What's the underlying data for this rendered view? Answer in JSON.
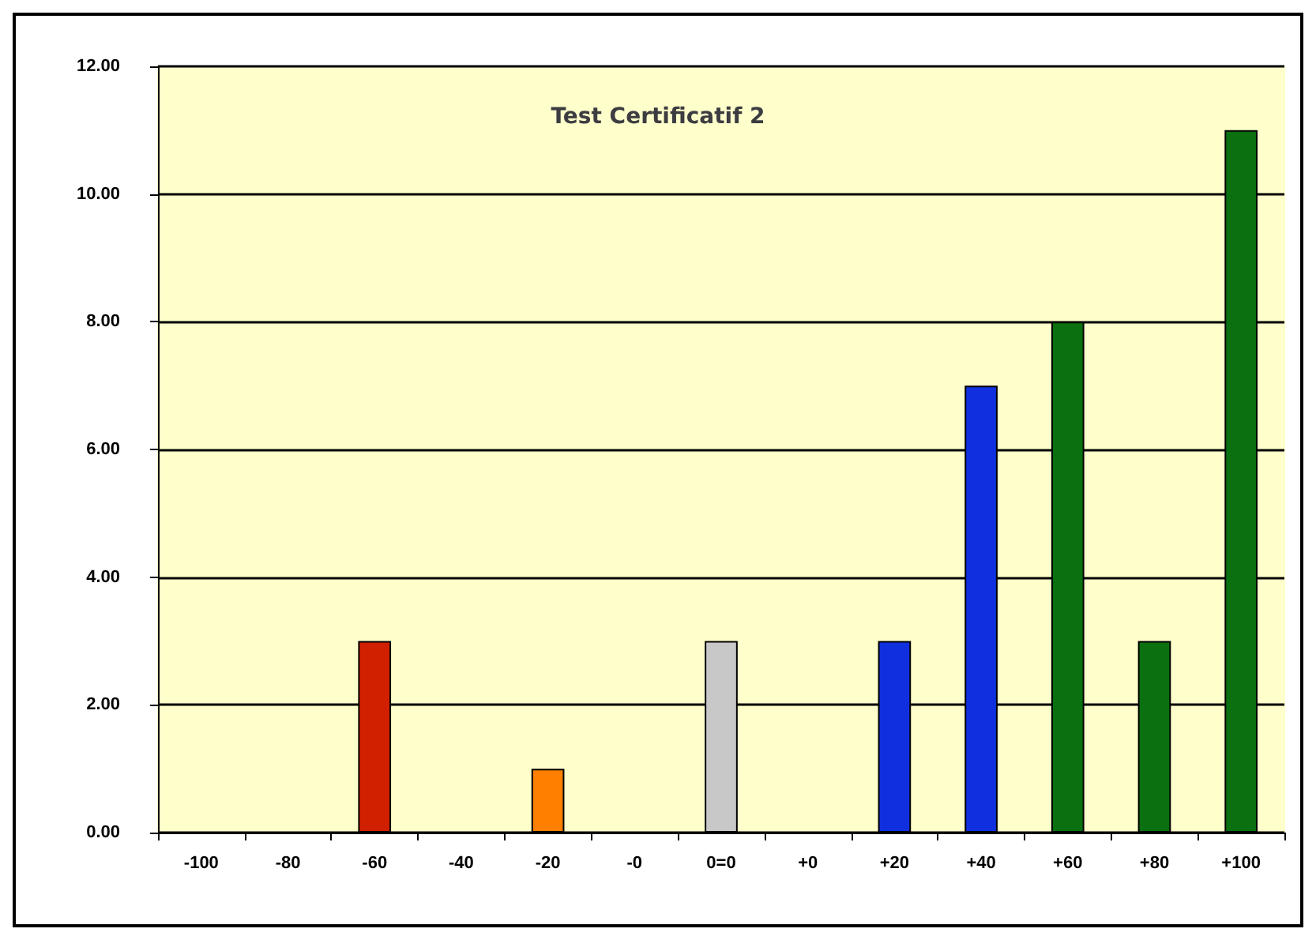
{
  "chart_data": {
    "type": "bar",
    "title": "Test Certificatif 2",
    "categories": [
      "-100",
      "-80",
      "-60",
      "-40",
      "-20",
      "-0",
      "0=0",
      "+0",
      "+20",
      "+40",
      "+60",
      "+80",
      "+100"
    ],
    "values": [
      null,
      null,
      3,
      null,
      1,
      null,
      3,
      null,
      3,
      7,
      8,
      3,
      11
    ],
    "colors": [
      "#d02000",
      "#d02000",
      "#d02000",
      "#ff8000",
      "#ff8000",
      "#c8c8c8",
      "#c8c8c8",
      "#1030e0",
      "#1030e0",
      "#1030e0",
      "#0a7010",
      "#0a7010",
      "#0a7010"
    ],
    "ylim": [
      0,
      12
    ],
    "yticks": [
      {
        "value": 0,
        "label": "0.00"
      },
      {
        "value": 2,
        "label": "2.00"
      },
      {
        "value": 4,
        "label": "4.00"
      },
      {
        "value": 6,
        "label": "6.00"
      },
      {
        "value": 8,
        "label": "8.00"
      },
      {
        "value": 10,
        "label": "10.00"
      },
      {
        "value": 12,
        "label": "12.00"
      }
    ],
    "grid": "y"
  }
}
